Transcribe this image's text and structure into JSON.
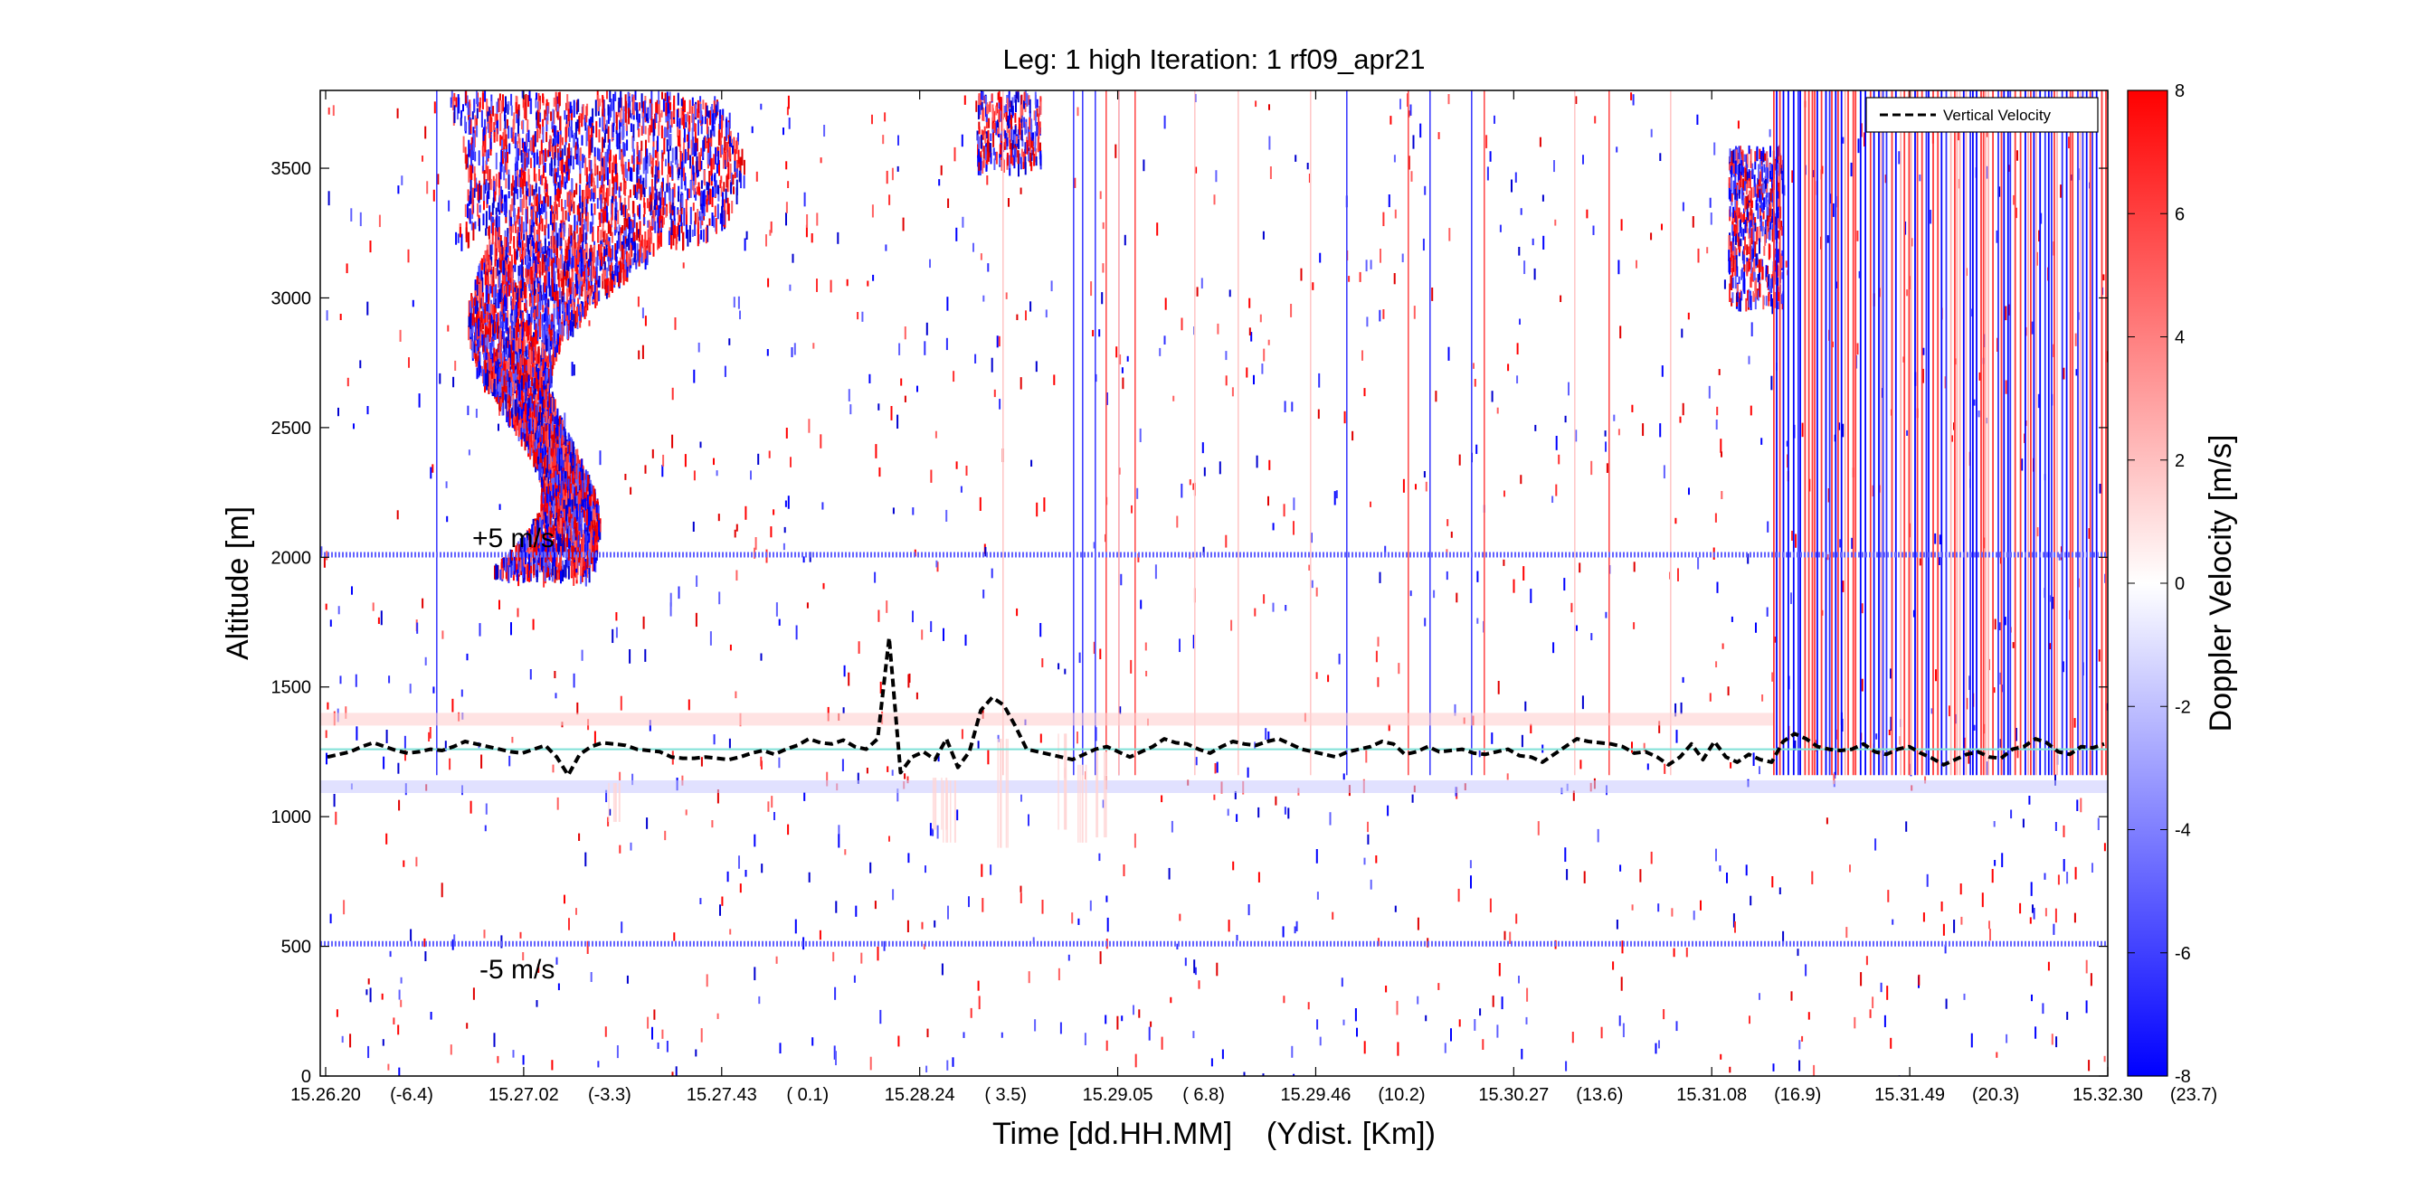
{
  "chart_data": {
    "type": "heatmap",
    "title": "Leg: 1 high Iteration: 1  rf09_apr21",
    "xlabel": "Time [dd.HH.MM]    (Ydist. [Km])",
    "ylabel": "Altitude [m]",
    "colorbar_label": "Doppler Velocity [m/s]",
    "colorbar_range": [
      -8,
      8
    ],
    "colorbar_ticks": [
      8,
      6,
      4,
      2,
      0,
      -2,
      -4,
      -6,
      -8
    ],
    "colormap": [
      "#0000ff",
      "#ffffff",
      "#ff0000"
    ],
    "ylim": [
      0,
      3800
    ],
    "y_ticks": [
      0,
      500,
      1000,
      1500,
      2000,
      2500,
      3000,
      3500
    ],
    "x_ticks": [
      {
        "time": "15.26.20",
        "ydist": "(-6.4)"
      },
      {
        "time": "15.27.02",
        "ydist": "(-3.3)"
      },
      {
        "time": "15.27.43",
        "ydist": "( 0.1)"
      },
      {
        "time": "15.28.24",
        "ydist": "( 3.5)"
      },
      {
        "time": "15.29.05",
        "ydist": "( 6.8)"
      },
      {
        "time": "15.29.46",
        "ydist": "(10.2)"
      },
      {
        "time": "15.30.27",
        "ydist": "(13.6)"
      },
      {
        "time": "15.31.08",
        "ydist": "(16.9)"
      },
      {
        "time": "15.31.49",
        "ydist": "(20.3)"
      },
      {
        "time": "15.32.30",
        "ydist": "(23.7)"
      }
    ],
    "legend": {
      "entry": "Vertical Velocity",
      "placement": "top-right",
      "style": "black dashed"
    },
    "annotations": [
      {
        "text": "+5 m/s",
        "altitude": 2010
      },
      {
        "text": "-5 m/s",
        "altitude": 510
      }
    ],
    "reference_lines": [
      {
        "altitude": 2010,
        "color": "#6464ff",
        "style": "dotted"
      },
      {
        "altitude": 510,
        "color": "#6464ff",
        "style": "dotted"
      },
      {
        "altitude": 1260,
        "color": "#7fe0d6",
        "style": "solid"
      }
    ],
    "vertical_velocity_altitude": [
      1230,
      1240,
      1250,
      1270,
      1285,
      1270,
      1255,
      1245,
      1250,
      1260,
      1255,
      1270,
      1290,
      1280,
      1270,
      1260,
      1250,
      1245,
      1260,
      1275,
      1230,
      1160,
      1240,
      1270,
      1285,
      1280,
      1275,
      1260,
      1255,
      1250,
      1230,
      1225,
      1225,
      1230,
      1225,
      1220,
      1230,
      1245,
      1255,
      1240,
      1260,
      1275,
      1300,
      1285,
      1280,
      1295,
      1270,
      1260,
      1300,
      1690,
      1170,
      1230,
      1250,
      1220,
      1300,
      1190,
      1250,
      1410,
      1460,
      1430,
      1350,
      1260,
      1250,
      1240,
      1230,
      1220,
      1240,
      1260,
      1270,
      1250,
      1230,
      1250,
      1270,
      1300,
      1285,
      1280,
      1260,
      1245,
      1270,
      1290,
      1280,
      1275,
      1290,
      1300,
      1280,
      1260,
      1250,
      1240,
      1230,
      1250,
      1260,
      1270,
      1290,
      1280,
      1240,
      1250,
      1270,
      1250,
      1255,
      1260,
      1245,
      1240,
      1250,
      1260,
      1235,
      1230,
      1210,
      1240,
      1270,
      1300,
      1290,
      1285,
      1280,
      1270,
      1245,
      1250,
      1230,
      1200,
      1230,
      1280,
      1220,
      1290,
      1230,
      1210,
      1240,
      1220,
      1210,
      1290,
      1320,
      1300,
      1270,
      1260,
      1255,
      1260,
      1280,
      1250,
      1240,
      1260,
      1270,
      1245,
      1225,
      1200,
      1220,
      1240,
      1250,
      1230,
      1225,
      1260,
      1270,
      1300,
      1285,
      1250,
      1240,
      1270,
      1265,
      1280
    ]
  }
}
